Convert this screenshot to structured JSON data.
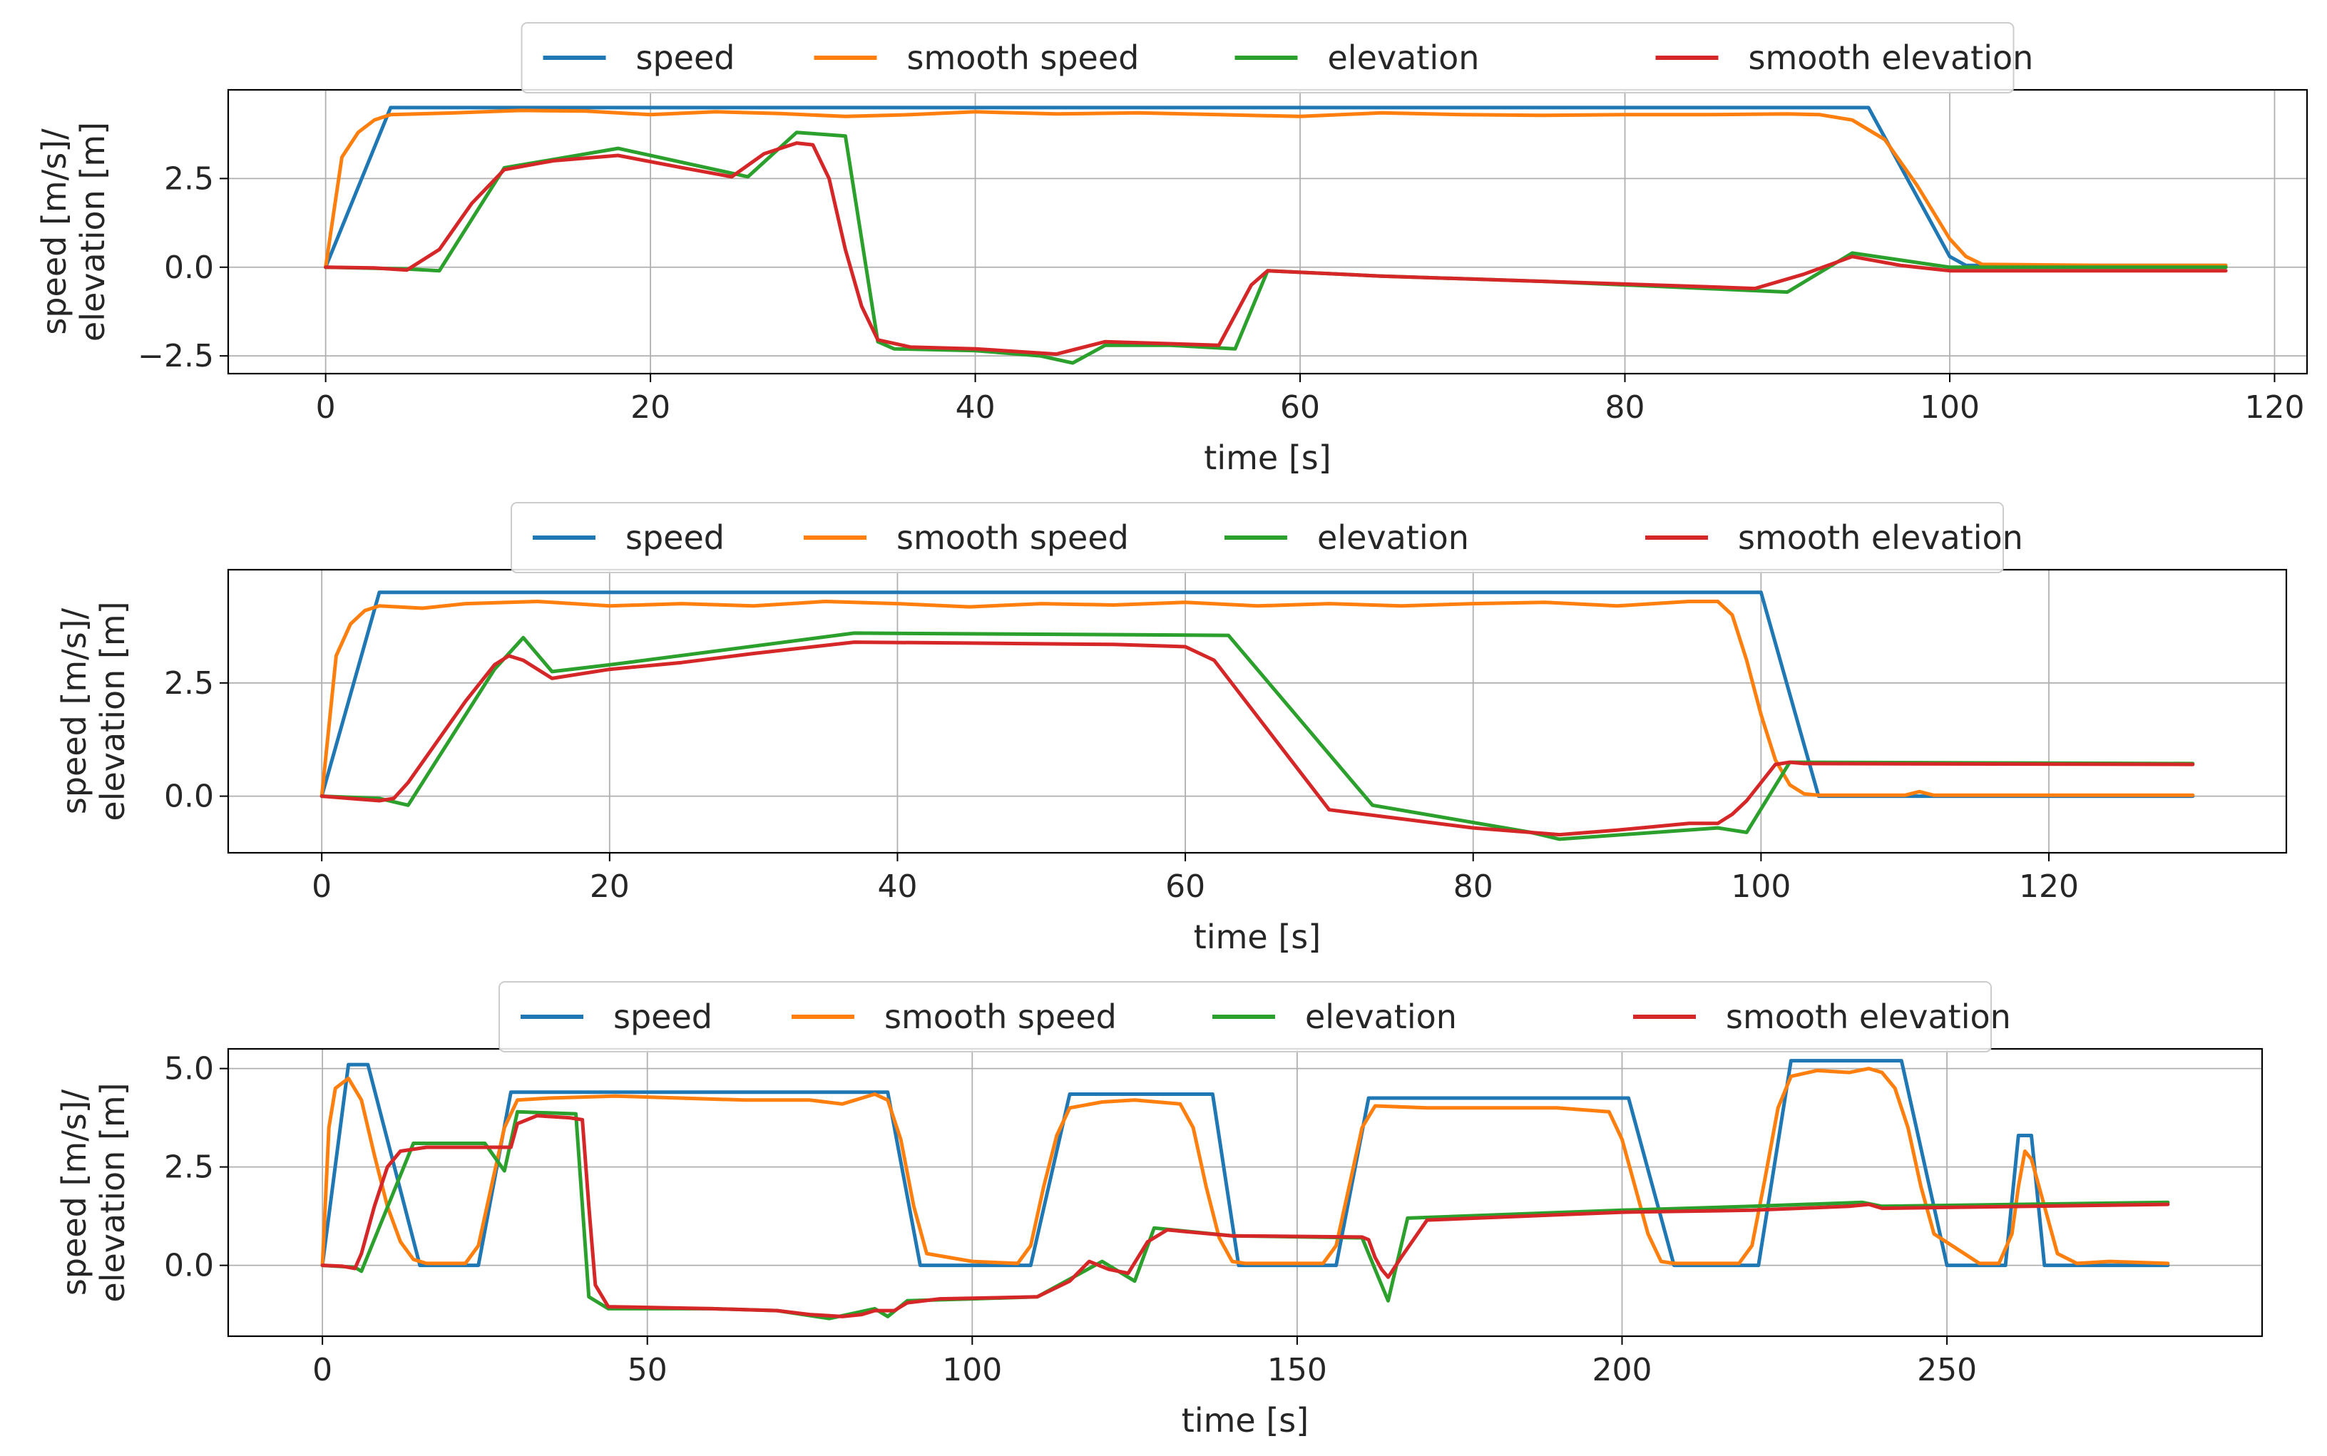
{
  "colors": {
    "speed": "#1f77b4",
    "smooth speed": "#ff7f0e",
    "elevation": "#2ca02c",
    "smooth elevation": "#d62728"
  },
  "chart_data": [
    {
      "type": "line",
      "xlabel": "time [s]",
      "ylabel": [
        "speed [m/s]/",
        "elevation [m]"
      ],
      "xlim": [
        -6,
        122
      ],
      "ylim": [
        -3.0,
        5.0
      ],
      "xticks": [
        0,
        20,
        40,
        60,
        80,
        100,
        120
      ],
      "xtick_labels": [
        "0",
        "20",
        "40",
        "60",
        "80",
        "100",
        "120"
      ],
      "yticks": [
        -2.5,
        0.0,
        2.5
      ],
      "ytick_labels": [
        "−2.5",
        "0.0",
        "2.5"
      ],
      "grid": true,
      "legend": {
        "position": "top-center",
        "labels": [
          "speed",
          "smooth speed",
          "elevation",
          "smooth elevation"
        ]
      },
      "series": [
        {
          "name": "speed",
          "x": [
            0,
            4,
            95,
            100,
            101,
            117
          ],
          "y": [
            0,
            4.5,
            4.5,
            0.3,
            0.05,
            0.05
          ]
        },
        {
          "name": "smooth speed",
          "x": [
            0,
            1,
            2,
            3,
            4,
            8,
            12,
            16,
            20,
            24,
            28,
            32,
            36,
            40,
            45,
            50,
            55,
            60,
            65,
            70,
            75,
            80,
            85,
            90,
            92,
            94,
            96,
            98,
            100,
            101,
            102,
            110,
            117
          ],
          "y": [
            0,
            3.1,
            3.8,
            4.15,
            4.3,
            4.35,
            4.42,
            4.4,
            4.3,
            4.38,
            4.33,
            4.25,
            4.3,
            4.38,
            4.32,
            4.35,
            4.3,
            4.25,
            4.35,
            4.3,
            4.28,
            4.3,
            4.3,
            4.32,
            4.3,
            4.15,
            3.6,
            2.3,
            0.8,
            0.3,
            0.08,
            0.05,
            0.05
          ]
        },
        {
          "name": "elevation",
          "x": [
            0,
            5,
            7,
            11,
            18,
            26,
            29,
            32,
            34,
            35,
            40,
            44,
            46,
            48,
            52,
            56,
            58,
            65,
            75,
            85,
            90,
            94,
            100,
            117
          ],
          "y": [
            0,
            -0.05,
            -0.1,
            2.8,
            3.35,
            2.55,
            3.8,
            3.7,
            -2.1,
            -2.3,
            -2.35,
            -2.5,
            -2.7,
            -2.2,
            -2.2,
            -2.3,
            -0.1,
            -0.25,
            -0.4,
            -0.6,
            -0.7,
            0.4,
            0,
            0
          ]
        },
        {
          "name": "smooth elevation",
          "x": [
            0,
            3,
            5,
            7,
            9,
            11,
            14,
            18,
            22,
            25,
            27,
            29,
            30,
            31,
            32,
            33,
            34,
            36,
            40,
            45,
            48,
            55,
            57,
            58,
            65,
            75,
            85,
            88,
            91,
            94,
            97,
            100,
            110,
            117
          ],
          "y": [
            0,
            -0.02,
            -0.08,
            0.5,
            1.8,
            2.75,
            3.0,
            3.15,
            2.8,
            2.55,
            3.2,
            3.5,
            3.45,
            2.5,
            0.5,
            -1.1,
            -2.05,
            -2.25,
            -2.3,
            -2.45,
            -2.1,
            -2.2,
            -0.5,
            -0.1,
            -0.25,
            -0.4,
            -0.55,
            -0.6,
            -0.2,
            0.3,
            0.05,
            -0.1,
            -0.1,
            -0.1
          ]
        }
      ]
    },
    {
      "type": "line",
      "xlabel": "time [s]",
      "ylabel": [
        "speed [m/s]/",
        "elevation [m]"
      ],
      "xlim": [
        -6.5,
        136.5
      ],
      "ylim": [
        -1.25,
        5.0
      ],
      "xticks": [
        0,
        20,
        40,
        60,
        80,
        100,
        120
      ],
      "xtick_labels": [
        "0",
        "20",
        "40",
        "60",
        "80",
        "100",
        "120"
      ],
      "yticks": [
        0.0,
        2.5
      ],
      "ytick_labels": [
        "0.0",
        "2.5"
      ],
      "grid": true,
      "legend": {
        "position": "top-center",
        "labels": [
          "speed",
          "smooth speed",
          "elevation",
          "smooth elevation"
        ]
      },
      "series": [
        {
          "name": "speed",
          "x": [
            0,
            4,
            100,
            104,
            130
          ],
          "y": [
            0,
            4.5,
            4.5,
            0,
            0
          ]
        },
        {
          "name": "smooth speed",
          "x": [
            0,
            1,
            2,
            3,
            4,
            7,
            10,
            15,
            20,
            25,
            30,
            35,
            40,
            45,
            50,
            55,
            60,
            65,
            70,
            75,
            80,
            85,
            90,
            95,
            97,
            98,
            99,
            100,
            101,
            102,
            103,
            104,
            110,
            111,
            112,
            130
          ],
          "y": [
            0,
            3.1,
            3.8,
            4.1,
            4.2,
            4.15,
            4.25,
            4.3,
            4.2,
            4.25,
            4.2,
            4.3,
            4.25,
            4.18,
            4.25,
            4.22,
            4.28,
            4.2,
            4.25,
            4.2,
            4.25,
            4.28,
            4.2,
            4.3,
            4.3,
            4.0,
            3.0,
            1.8,
            0.8,
            0.25,
            0.05,
            0.02,
            0.02,
            0.1,
            0.02,
            0.02
          ]
        },
        {
          "name": "elevation",
          "x": [
            0,
            4,
            6,
            12,
            14,
            16,
            20,
            37,
            63,
            73,
            84,
            86,
            97,
            99,
            102,
            130
          ],
          "y": [
            0,
            -0.05,
            -0.2,
            2.8,
            3.5,
            2.75,
            2.9,
            3.6,
            3.55,
            -0.2,
            -0.8,
            -0.95,
            -0.7,
            -0.8,
            0.75,
            0.72
          ]
        },
        {
          "name": "smooth elevation",
          "x": [
            0,
            4,
            5,
            6,
            8,
            10,
            12,
            13,
            14,
            16,
            20,
            25,
            30,
            37,
            45,
            55,
            60,
            62,
            70,
            75,
            80,
            86,
            90,
            95,
            97,
            98,
            99,
            100,
            101,
            102,
            103,
            130
          ],
          "y": [
            0,
            -0.1,
            -0.05,
            0.3,
            1.2,
            2.1,
            2.9,
            3.1,
            3.0,
            2.6,
            2.8,
            2.95,
            3.15,
            3.4,
            3.38,
            3.35,
            3.3,
            3.0,
            -0.3,
            -0.5,
            -0.7,
            -0.85,
            -0.75,
            -0.6,
            -0.6,
            -0.4,
            -0.1,
            0.3,
            0.7,
            0.75,
            0.72,
            0.7
          ]
        }
      ]
    },
    {
      "type": "line",
      "xlabel": "time [s]",
      "ylabel": [
        "speed [m/s]/",
        "elevation [m]"
      ],
      "xlim": [
        -14.5,
        298.5
      ],
      "ylim": [
        -1.8,
        5.5
      ],
      "xticks": [
        0,
        50,
        100,
        150,
        200,
        250
      ],
      "xtick_labels": [
        "0",
        "50",
        "100",
        "150",
        "200",
        "250"
      ],
      "yticks": [
        0.0,
        2.5,
        5.0
      ],
      "ytick_labels": [
        "0.0",
        "2.5",
        "5.0"
      ],
      "grid": true,
      "legend": {
        "position": "top-center",
        "labels": [
          "speed",
          "smooth speed",
          "elevation",
          "smooth elevation"
        ]
      },
      "series": [
        {
          "name": "speed",
          "x": [
            0,
            4,
            7,
            15,
            24,
            29,
            87,
            92,
            109,
            115,
            137,
            141,
            156,
            161,
            201,
            208,
            221,
            226,
            243,
            250,
            259,
            261,
            263,
            265,
            284
          ],
          "y": [
            0,
            5.1,
            5.1,
            0,
            0,
            4.4,
            4.4,
            0,
            0,
            4.35,
            4.35,
            0,
            0,
            4.25,
            4.25,
            0,
            0,
            5.2,
            5.2,
            0,
            0,
            3.3,
            3.3,
            0,
            0
          ]
        },
        {
          "name": "smooth speed",
          "x": [
            0,
            1,
            2,
            4,
            6,
            8,
            10,
            12,
            14,
            16,
            22,
            24,
            26,
            28,
            30,
            35,
            45,
            55,
            65,
            75,
            80,
            85,
            87,
            89,
            91,
            93,
            100,
            107,
            109,
            111,
            113,
            115,
            120,
            125,
            132,
            134,
            136,
            138,
            140,
            142,
            154,
            156,
            158,
            160,
            162,
            170,
            180,
            190,
            198,
            200,
            202,
            204,
            206,
            208,
            218,
            220,
            222,
            224,
            226,
            230,
            235,
            238,
            240,
            242,
            244,
            246,
            248,
            255,
            258,
            260,
            261,
            262,
            263,
            265,
            267,
            270,
            275,
            284
          ],
          "y": [
            0,
            3.5,
            4.5,
            4.75,
            4.2,
            2.8,
            1.5,
            0.6,
            0.15,
            0.05,
            0.05,
            0.5,
            2.0,
            3.5,
            4.2,
            4.25,
            4.3,
            4.25,
            4.2,
            4.2,
            4.1,
            4.35,
            4.2,
            3.2,
            1.5,
            0.3,
            0.1,
            0.05,
            0.5,
            2.0,
            3.3,
            4.0,
            4.15,
            4.2,
            4.1,
            3.5,
            2.0,
            0.7,
            0.1,
            0.05,
            0.05,
            0.5,
            2.0,
            3.5,
            4.05,
            4.0,
            4.0,
            4.0,
            3.9,
            3.2,
            2.0,
            0.8,
            0.1,
            0.05,
            0.05,
            0.5,
            2.2,
            4.0,
            4.8,
            4.95,
            4.9,
            5.0,
            4.9,
            4.5,
            3.5,
            2.0,
            0.8,
            0.05,
            0.05,
            0.8,
            2.0,
            2.9,
            2.7,
            1.5,
            0.3,
            0.05,
            0.1,
            0.05
          ]
        },
        {
          "name": "elevation",
          "x": [
            0,
            5,
            6,
            14,
            25,
            28,
            30,
            39,
            41,
            44,
            60,
            70,
            78,
            85,
            87,
            90,
            100,
            110,
            120,
            123,
            125,
            128,
            140,
            160,
            162,
            164,
            167,
            200,
            220,
            237,
            240,
            284
          ],
          "y": [
            0,
            -0.05,
            -0.15,
            3.1,
            3.1,
            2.4,
            3.9,
            3.85,
            -0.8,
            -1.1,
            -1.1,
            -1.15,
            -1.35,
            -1.1,
            -1.3,
            -0.9,
            -0.85,
            -0.8,
            0.1,
            -0.2,
            -0.4,
            0.95,
            0.75,
            0.7,
            -0.1,
            -0.9,
            1.2,
            1.4,
            1.5,
            1.6,
            1.5,
            1.6
          ]
        },
        {
          "name": "smooth elevation",
          "x": [
            0,
            3,
            5,
            6,
            8,
            10,
            12,
            16,
            22,
            25,
            27,
            29,
            30,
            33,
            38,
            40,
            41,
            42,
            44,
            60,
            70,
            75,
            80,
            83,
            85,
            88,
            90,
            95,
            110,
            115,
            118,
            121,
            124,
            127,
            130,
            140,
            160,
            161,
            162,
            163,
            164,
            166,
            170,
            200,
            220,
            235,
            238,
            240,
            284
          ],
          "y": [
            0,
            -0.02,
            -0.08,
            0.3,
            1.5,
            2.5,
            2.9,
            3.0,
            3.0,
            3.0,
            3.0,
            3.0,
            3.6,
            3.8,
            3.75,
            3.7,
            1.5,
            -0.5,
            -1.05,
            -1.1,
            -1.15,
            -1.25,
            -1.3,
            -1.25,
            -1.15,
            -1.15,
            -0.95,
            -0.85,
            -0.8,
            -0.4,
            0.1,
            -0.1,
            -0.2,
            0.6,
            0.9,
            0.75,
            0.72,
            0.65,
            0.2,
            -0.1,
            -0.3,
            0.2,
            1.15,
            1.35,
            1.4,
            1.5,
            1.55,
            1.45,
            1.55
          ]
        }
      ]
    }
  ]
}
